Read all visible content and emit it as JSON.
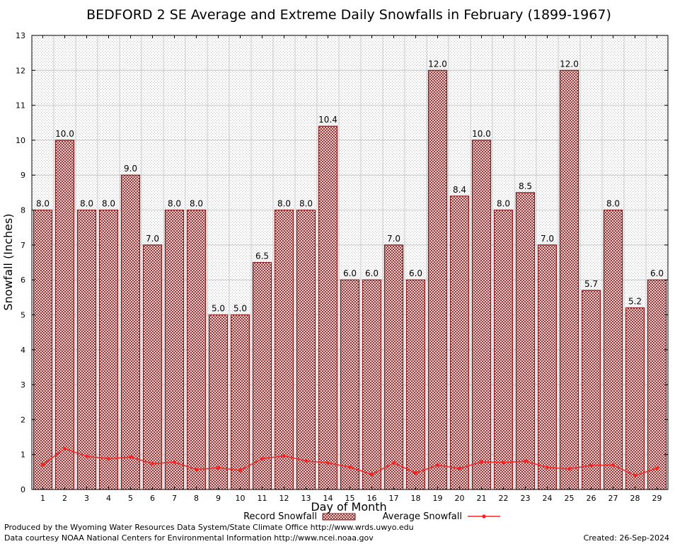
{
  "chart_data": {
    "type": "bar",
    "title": "BEDFORD 2 SE Average and Extreme Daily Snowfalls in February (1899-1967)",
    "xlabel": "Day of Month",
    "ylabel": "Snowfall (Inches)",
    "ylim": [
      0,
      13
    ],
    "yticks": [
      "0",
      "1",
      "2",
      "3",
      "4",
      "5",
      "6",
      "7",
      "8",
      "9",
      "10",
      "11",
      "12",
      "13"
    ],
    "categories": [
      "1",
      "2",
      "3",
      "4",
      "5",
      "6",
      "7",
      "8",
      "9",
      "10",
      "11",
      "12",
      "13",
      "14",
      "15",
      "16",
      "17",
      "18",
      "19",
      "20",
      "21",
      "22",
      "23",
      "24",
      "25",
      "26",
      "27",
      "28",
      "29"
    ],
    "series": [
      {
        "name": "Record Snowfall",
        "type": "bar",
        "color": "#8b1a1a",
        "values": [
          8.0,
          10.0,
          8.0,
          8.0,
          9.0,
          7.0,
          8.0,
          8.0,
          5.0,
          5.0,
          6.5,
          8.0,
          8.0,
          10.4,
          6.0,
          6.0,
          7.0,
          6.0,
          12.0,
          8.4,
          10.0,
          8.0,
          8.5,
          7.0,
          12.0,
          5.7,
          8.0,
          5.2,
          6.0
        ],
        "labels": [
          "8.0",
          "10.0",
          "8.0",
          "8.0",
          "9.0",
          "7.0",
          "8.0",
          "8.0",
          "5.0",
          "5.0",
          "6.5",
          "8.0",
          "8.0",
          "10.4",
          "6.0",
          "6.0",
          "7.0",
          "6.0",
          "12.0",
          "8.4",
          "10.0",
          "8.0",
          "8.5",
          "7.0",
          "12.0",
          "5.7",
          "8.0",
          "5.2",
          "6.0"
        ]
      },
      {
        "name": "Average Snowfall",
        "type": "line",
        "color": "#ff2020",
        "values": [
          0.71,
          1.17,
          0.95,
          0.88,
          0.93,
          0.74,
          0.78,
          0.57,
          0.62,
          0.55,
          0.88,
          0.96,
          0.82,
          0.76,
          0.64,
          0.43,
          0.76,
          0.47,
          0.7,
          0.6,
          0.79,
          0.77,
          0.81,
          0.63,
          0.59,
          0.69,
          0.7,
          0.4,
          0.61
        ]
      }
    ],
    "grid": true,
    "legend_position": "bottom"
  },
  "footer": {
    "producer": "Produced by the Wyoming Water Resources Data System/State Climate Office http://www.wrds.uwyo.edu",
    "courtesy": "Data courtesy NOAA National Centers for Environmental Information http://www.ncei.noaa.gov",
    "created": "Created:  26-Sep-2024"
  }
}
